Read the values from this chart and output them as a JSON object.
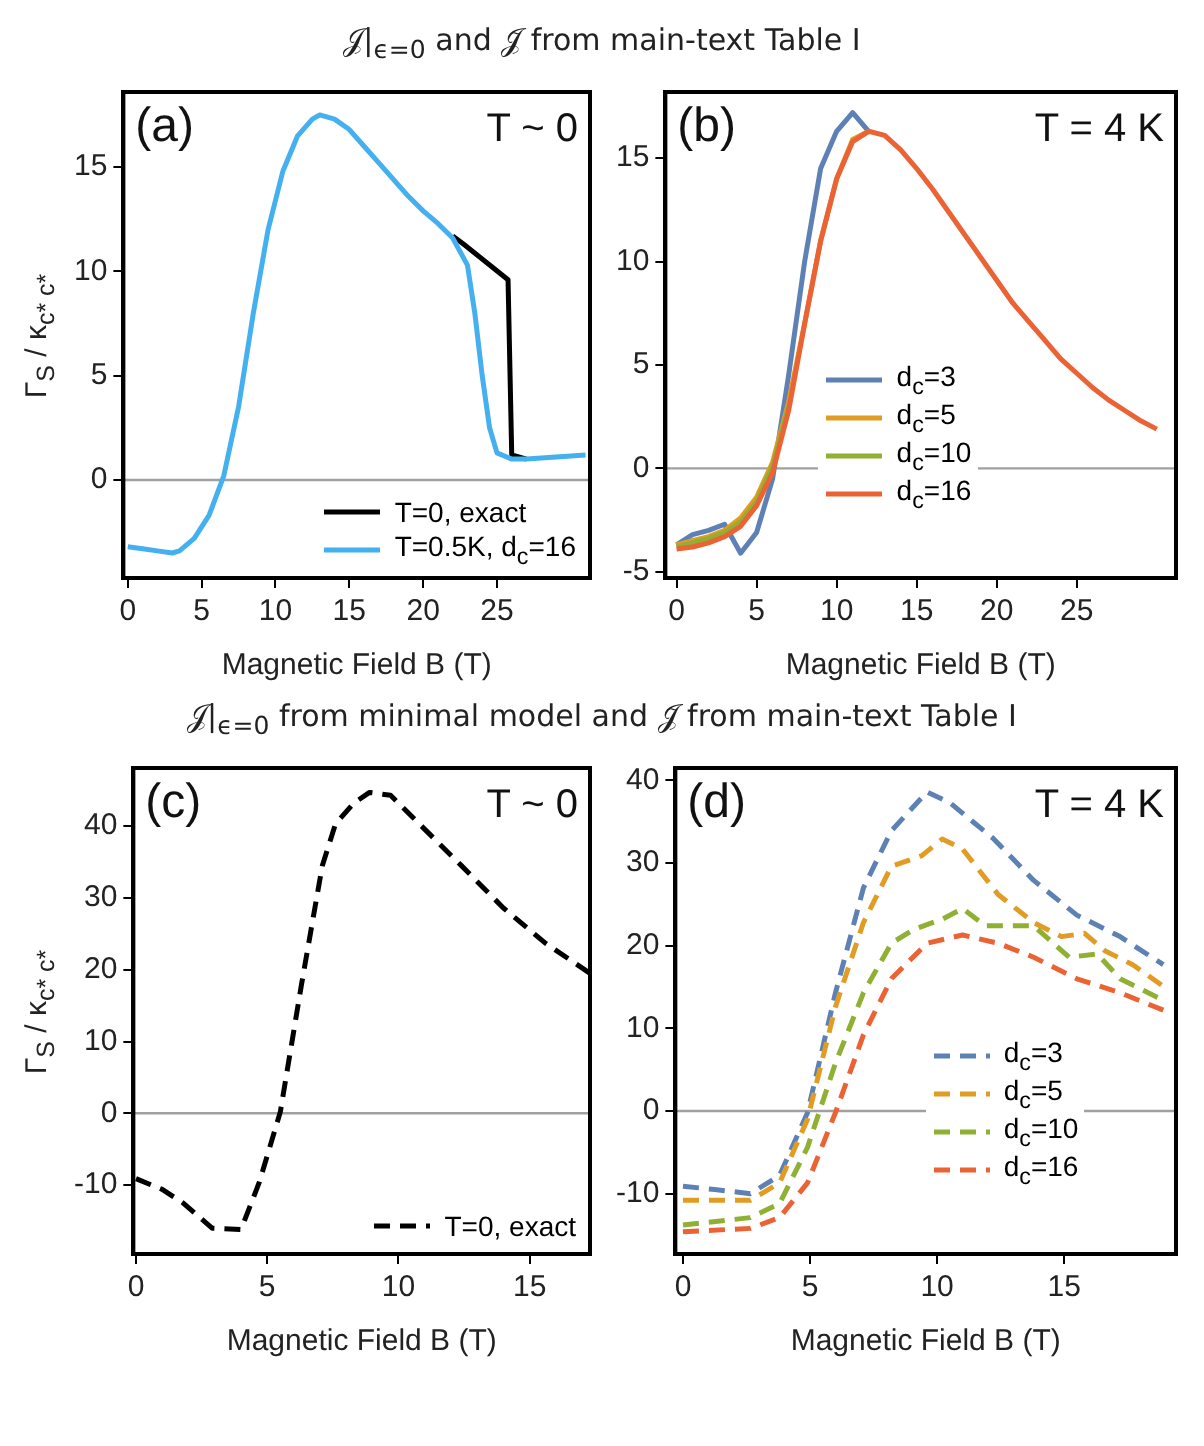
{
  "chart_data": [
    {
      "type": "line",
      "title": "𝒥|$_{ϵ=0}$ and 𝒥̃ from main-text Table I",
      "xlabel": "Magnetic Field B (T)",
      "ylabel": "Γ$_{S}$ / κ$_{c* c*}$",
      "annotations": [
        "(a)",
        "T ~ 0"
      ],
      "xlim": [
        -0.3,
        31.3
      ],
      "ylim": [
        -4.7,
        18.6
      ],
      "xticks": [
        0,
        5,
        10,
        15,
        20,
        25
      ],
      "yticks": [
        0,
        5,
        10,
        15
      ],
      "legend": "bottom right",
      "grid": false,
      "line_style": "solid",
      "marker": "none",
      "ref_lines": [
        {
          "axis": "y",
          "value": 0,
          "color": "#a0a0a0"
        }
      ],
      "series": [
        {
          "name": "T=0, exact",
          "color": "#000000",
          "x": [
            22,
            22.75,
            25.75,
            26,
            27
          ],
          "values": [
            11.7,
            11.3,
            9.6,
            1.2,
            1
          ]
        },
        {
          "name": "T=0.5K, d$_{c}$=16",
          "color": "#45b0f0",
          "x": [
            0,
            1,
            2,
            3,
            3.5,
            4.5,
            5.5,
            6.5,
            7.5,
            8.5,
            9.5,
            10.5,
            11.5,
            12.5,
            13,
            14,
            15,
            16,
            17,
            18,
            19,
            20,
            21,
            22,
            23,
            23.5,
            24,
            24.5,
            25,
            26,
            27,
            29,
            31
          ],
          "values": [
            -3.2,
            -3.3,
            -3.4,
            -3.5,
            -3.4,
            -2.8,
            -1.7,
            0.2,
            3.5,
            8,
            12,
            14.8,
            16.5,
            17.3,
            17.5,
            17.3,
            16.8,
            16,
            15.2,
            14.4,
            13.6,
            12.9,
            12.3,
            11.6,
            10.3,
            8,
            5,
            2.5,
            1.3,
            1,
            1,
            1.1,
            1.2
          ]
        }
      ]
    },
    {
      "type": "line",
      "xlim": [
        -0.7,
        31.2
      ],
      "ylim": [
        -5.3,
        18.2
      ],
      "xticks": [
        0,
        5,
        10,
        15,
        20,
        25
      ],
      "yticks": [
        -5,
        0,
        5,
        10,
        15
      ],
      "annotations": [
        "(b)",
        "T = 4 K"
      ],
      "xlabel": "Magnetic Field B (T)",
      "legend": "right",
      "grid": false,
      "line_style": "solid",
      "marker": "none",
      "ref_lines": [
        {
          "axis": "y",
          "value": 0,
          "color": "#a0a0a0"
        }
      ],
      "series": [
        {
          "name": "d$_{c}$=3",
          "color": "#5e81b5",
          "x": [
            0,
            1,
            2,
            3,
            4,
            5,
            6,
            7,
            8,
            9,
            10,
            11,
            12
          ],
          "values": [
            -3.7,
            -3.2,
            -3,
            -2.7,
            -4.1,
            -3.1,
            -0.5,
            4.5,
            10,
            14.5,
            16.3,
            17.2,
            16.3
          ]
        },
        {
          "name": "d$_{c}$=5",
          "color": "#e19c24",
          "x": [
            0,
            1,
            2,
            3,
            4,
            5,
            6,
            7,
            8,
            9,
            10,
            11,
            12
          ],
          "values": [
            -3.7,
            -3.5,
            -3.3,
            -3,
            -2.4,
            -1.4,
            0.3,
            3.2,
            7,
            11,
            14,
            15.9,
            16.3
          ]
        },
        {
          "name": "d$_{c}$=10",
          "color": "#8fb032",
          "x": [
            0,
            1,
            2,
            3,
            4,
            5,
            6,
            7
          ],
          "values": [
            -3.8,
            -3.6,
            -3.4,
            -3.1,
            -2.6,
            -1.6,
            0.1,
            3
          ]
        },
        {
          "name": "d$_{c}$=16",
          "color": "#eb6235",
          "x": [
            0,
            1,
            2,
            3,
            4,
            5,
            6,
            7,
            8,
            9,
            10,
            11,
            12,
            13,
            14,
            15,
            16,
            17,
            18,
            19,
            20,
            21,
            22,
            23,
            24,
            25,
            26,
            27,
            28,
            29,
            30
          ],
          "values": [
            -3.9,
            -3.8,
            -3.6,
            -3.3,
            -2.8,
            -1.8,
            -0.2,
            2.8,
            7,
            11,
            14,
            15.8,
            16.3,
            16.1,
            15.4,
            14.5,
            13.5,
            12.4,
            11.3,
            10.2,
            9.1,
            8,
            7.1,
            6.2,
            5.3,
            4.6,
            3.9,
            3.3,
            2.8,
            2.3,
            1.9
          ]
        }
      ]
    },
    {
      "type": "line",
      "title": "𝒥|$_{ϵ=0}$ from minimal model and 𝒥̃ from main-text Table I",
      "xlabel": "Magnetic Field B (T)",
      "ylabel": "Γ$_{S}$ / κ$_{c* c*}$",
      "annotations": [
        "(c)",
        "T ~ 0"
      ],
      "xlim": [
        -0.1,
        17.3
      ],
      "ylim": [
        -19.6,
        48.1
      ],
      "xticks": [
        0,
        5,
        10,
        15
      ],
      "yticks": [
        -10,
        0,
        10,
        20,
        30,
        40
      ],
      "legend": "bottom right",
      "grid": false,
      "line_style": "dashed",
      "marker": "none",
      "ref_lines": [
        {
          "axis": "y",
          "value": 0,
          "color": "#a0a0a0"
        }
      ],
      "series": [
        {
          "name": "T=0, exact",
          "color": "#000000",
          "x": [
            0,
            1,
            1.8,
            2.9,
            4,
            4.7,
            5.5,
            6.3,
            7.1,
            7.6,
            8.3,
            8.9,
            9.7,
            10.8,
            12.4,
            14,
            15.6,
            17.3
          ],
          "values": [
            -9.1,
            -10.6,
            -12.5,
            -16,
            -16.2,
            -9.6,
            0.2,
            17.8,
            34.5,
            40.3,
            43.2,
            44.7,
            44.3,
            40.3,
            34.5,
            28.6,
            23.7,
            19.5
          ]
        }
      ]
    },
    {
      "type": "line",
      "xlim": [
        -0.3,
        19.4
      ],
      "ylim": [
        -17.3,
        41.5
      ],
      "xticks": [
        0,
        5,
        10,
        15
      ],
      "yticks": [
        -10,
        0,
        10,
        20,
        30,
        40
      ],
      "annotations": [
        "(d)",
        "T = 4 K"
      ],
      "xlabel": "Magnetic Field B (T)",
      "legend": "right",
      "grid": false,
      "line_style": "dashed",
      "marker": "none",
      "ref_lines": [
        {
          "axis": "y",
          "value": 0,
          "color": "#a0a0a0"
        }
      ],
      "series": [
        {
          "name": "d$_{c}$=3",
          "color": "#5e81b5",
          "x": [
            0,
            1.25,
            2.65,
            3.8,
            4.9,
            6,
            7.1,
            8.2,
            9.6,
            10.5,
            12.2,
            13.8,
            15.5,
            17.2,
            18.9
          ],
          "values": [
            -9.1,
            -9.5,
            -10,
            -7.8,
            -0.2,
            14.3,
            27,
            33.9,
            38.6,
            37.3,
            33,
            27.9,
            23.7,
            21.1,
            17.7
          ]
        },
        {
          "name": "d$_{c}$=5",
          "color": "#e19c24",
          "x": [
            0,
            2.65,
            3.8,
            4.9,
            6,
            7.1,
            8.2,
            9.4,
            10.2,
            11,
            12.4,
            13.8,
            14.9,
            15.8,
            16.6,
            17.7,
            18.9
          ],
          "values": [
            -10.8,
            -10.8,
            -8.7,
            -1,
            12.6,
            22.8,
            29.6,
            30.9,
            32.9,
            31.7,
            26.2,
            22.8,
            21.1,
            21.5,
            19.4,
            17.7,
            15.1
          ]
        },
        {
          "name": "d$_{c}$=10",
          "color": "#8fb032",
          "x": [
            0,
            2.65,
            3.8,
            4.9,
            6,
            7.1,
            8.2,
            9.1,
            10.2,
            11,
            11.9,
            13.8,
            15.2,
            16.3,
            17.2,
            18.9
          ],
          "values": [
            -13.8,
            -12.9,
            -11.2,
            -4.4,
            5.8,
            14.3,
            20.3,
            22,
            23.2,
            24.5,
            22.4,
            22.4,
            18.6,
            19,
            16,
            13.4
          ]
        },
        {
          "name": "d$_{c}$=16",
          "color": "#eb6235",
          "x": [
            0,
            2.65,
            3.8,
            4.9,
            6,
            7.1,
            8.2,
            9.6,
            11,
            12.4,
            13.8,
            15.5,
            17.2,
            18.9
          ],
          "values": [
            -14.6,
            -14.2,
            -12.9,
            -8.7,
            -0.2,
            9.2,
            16,
            20.3,
            21.3,
            20.3,
            18.6,
            16,
            14.3,
            12.2
          ]
        }
      ]
    }
  ]
}
